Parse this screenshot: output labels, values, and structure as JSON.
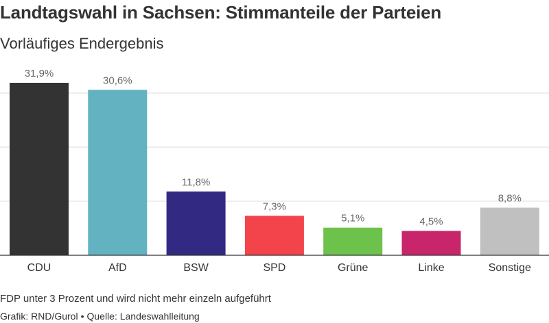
{
  "header": {
    "title": "Landtagswahl in Sachsen: Stimmanteile der Parteien",
    "subtitle": "Vorläufiges Endergebnis"
  },
  "footer": {
    "note": "FDP unter 3 Prozent und wird nicht mehr einzeln aufgeführt",
    "credit_graphic": "Grafik: RND/Gurol",
    "credit_separator": "•",
    "credit_source": "Quelle: Landeswahlleitung"
  },
  "chart_data": {
    "type": "bar",
    "title": "Landtagswahl in Sachsen: Stimmanteile der Parteien",
    "subtitle": "Vorläufiges Endergebnis",
    "categories": [
      "CDU",
      "AfD",
      "BSW",
      "SPD",
      "Grüne",
      "Linke",
      "Sonstige"
    ],
    "values": [
      31.9,
      30.6,
      11.8,
      7.3,
      5.1,
      4.5,
      8.8
    ],
    "value_labels": [
      "31,9%",
      "30,6%",
      "11,8%",
      "7,3%",
      "5,1%",
      "4,5%",
      "8,8%"
    ],
    "colors": [
      "#333333",
      "#62b2c1",
      "#322a82",
      "#f2444a",
      "#6cc24a",
      "#c8256b",
      "#c0c0c0"
    ],
    "ylim": [
      0,
      35
    ],
    "gridlines": [
      10,
      20,
      30
    ],
    "xlabel": "",
    "ylabel": "",
    "grid": true,
    "legend": "none"
  }
}
